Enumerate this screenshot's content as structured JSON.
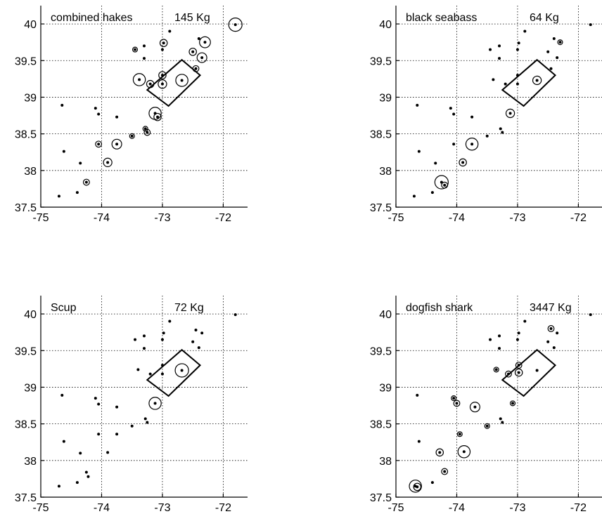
{
  "chart_data": [
    {
      "type": "scatter",
      "title": "combined hakes",
      "total_label": "145 Kg",
      "xlim": [
        -75,
        -71.6
      ],
      "ylim": [
        37.5,
        40.25
      ],
      "xticks": [
        "-75",
        "-74",
        "-73",
        "-72"
      ],
      "yticks": [
        "37.5",
        "38",
        "38.5",
        "39",
        "39.5",
        "40"
      ],
      "grid": true,
      "stations": [
        {
          "x": -74.65,
          "y": 38.89,
          "r": 0
        },
        {
          "x": -74.62,
          "y": 38.26,
          "r": 0
        },
        {
          "x": -74.7,
          "y": 37.65,
          "r": 0
        },
        {
          "x": -74.4,
          "y": 37.7,
          "r": 0
        },
        {
          "x": -74.35,
          "y": 38.1,
          "r": 0
        },
        {
          "x": -74.25,
          "y": 37.84,
          "r": 0.05
        },
        {
          "x": -74.1,
          "y": 38.85,
          "r": 0
        },
        {
          "x": -74.05,
          "y": 38.77,
          "r": 0
        },
        {
          "x": -74.05,
          "y": 38.36,
          "r": 0.05
        },
        {
          "x": -73.9,
          "y": 38.11,
          "r": 0.07
        },
        {
          "x": -73.75,
          "y": 38.73,
          "r": 0
        },
        {
          "x": -73.75,
          "y": 38.36,
          "r": 0.08
        },
        {
          "x": -73.5,
          "y": 38.47,
          "r": 0.04
        },
        {
          "x": -73.45,
          "y": 39.65,
          "r": 0.04
        },
        {
          "x": -73.38,
          "y": 39.24,
          "r": 0.1
        },
        {
          "x": -73.28,
          "y": 38.57,
          "r": 0.04
        },
        {
          "x": -73.25,
          "y": 38.52,
          "r": 0.05
        },
        {
          "x": -73.3,
          "y": 39.7,
          "r": 0
        },
        {
          "x": -73.3,
          "y": 39.53,
          "r": 0
        },
        {
          "x": -73.2,
          "y": 39.18,
          "r": 0.06
        },
        {
          "x": -73.12,
          "y": 38.78,
          "r": 0.1
        },
        {
          "x": -73.08,
          "y": 38.73,
          "r": 0.06
        },
        {
          "x": -73.0,
          "y": 39.3,
          "r": 0.06
        },
        {
          "x": -73.0,
          "y": 39.18,
          "r": 0.07
        },
        {
          "x": -73.0,
          "y": 39.65,
          "r": 0
        },
        {
          "x": -72.98,
          "y": 39.74,
          "r": 0.06
        },
        {
          "x": -72.88,
          "y": 39.9,
          "r": 0
        },
        {
          "x": -72.68,
          "y": 39.23,
          "r": 0.1
        },
        {
          "x": -72.5,
          "y": 39.62,
          "r": 0.06
        },
        {
          "x": -72.45,
          "y": 39.39,
          "r": 0.05
        },
        {
          "x": -72.4,
          "y": 39.8,
          "r": 0
        },
        {
          "x": -72.35,
          "y": 39.54,
          "r": 0.08
        },
        {
          "x": -72.3,
          "y": 39.75,
          "r": 0.09
        },
        {
          "x": -71.8,
          "y": 39.99,
          "r": 0.11
        }
      ]
    },
    {
      "type": "scatter",
      "title": "black seabass",
      "total_label": "64 Kg",
      "xlim": [
        -75,
        -71.6
      ],
      "ylim": [
        37.5,
        40.25
      ],
      "xticks": [
        "-75",
        "-74",
        "-73",
        "-72"
      ],
      "yticks": [
        "37.5",
        "38",
        "38.5",
        "39",
        "39.5",
        "40"
      ],
      "grid": true,
      "stations": [
        {
          "x": -74.65,
          "y": 38.89,
          "r": 0
        },
        {
          "x": -74.62,
          "y": 38.26,
          "r": 0
        },
        {
          "x": -74.7,
          "y": 37.65,
          "r": 0
        },
        {
          "x": -74.4,
          "y": 37.7,
          "r": 0
        },
        {
          "x": -74.35,
          "y": 38.1,
          "r": 0
        },
        {
          "x": -74.25,
          "y": 37.84,
          "r": 0.11
        },
        {
          "x": -74.2,
          "y": 37.8,
          "r": 0.05
        },
        {
          "x": -74.1,
          "y": 38.85,
          "r": 0
        },
        {
          "x": -74.05,
          "y": 38.77,
          "r": 0
        },
        {
          "x": -74.05,
          "y": 38.36,
          "r": 0
        },
        {
          "x": -73.9,
          "y": 38.11,
          "r": 0.06
        },
        {
          "x": -73.75,
          "y": 38.73,
          "r": 0
        },
        {
          "x": -73.75,
          "y": 38.36,
          "r": 0.1
        },
        {
          "x": -73.5,
          "y": 38.47,
          "r": 0
        },
        {
          "x": -73.45,
          "y": 39.65,
          "r": 0
        },
        {
          "x": -73.4,
          "y": 39.24,
          "r": 0
        },
        {
          "x": -73.28,
          "y": 38.57,
          "r": 0
        },
        {
          "x": -73.25,
          "y": 38.52,
          "r": 0
        },
        {
          "x": -73.3,
          "y": 39.7,
          "r": 0
        },
        {
          "x": -73.3,
          "y": 39.53,
          "r": 0
        },
        {
          "x": -73.2,
          "y": 39.18,
          "r": 0
        },
        {
          "x": -73.12,
          "y": 38.78,
          "r": 0.07
        },
        {
          "x": -73.0,
          "y": 39.3,
          "r": 0
        },
        {
          "x": -73.0,
          "y": 39.18,
          "r": 0
        },
        {
          "x": -73.0,
          "y": 39.65,
          "r": 0
        },
        {
          "x": -72.98,
          "y": 39.74,
          "r": 0
        },
        {
          "x": -72.88,
          "y": 39.9,
          "r": 0
        },
        {
          "x": -72.68,
          "y": 39.23,
          "r": 0.07
        },
        {
          "x": -72.5,
          "y": 39.62,
          "r": 0
        },
        {
          "x": -72.45,
          "y": 39.39,
          "r": 0
        },
        {
          "x": -72.4,
          "y": 39.8,
          "r": 0
        },
        {
          "x": -72.35,
          "y": 39.54,
          "r": 0
        },
        {
          "x": -72.3,
          "y": 39.75,
          "r": 0.04
        },
        {
          "x": -71.8,
          "y": 39.99,
          "r": 0
        }
      ]
    },
    {
      "type": "scatter",
      "title": "Scup",
      "total_label": "72 Kg",
      "xlim": [
        -75,
        -71.6
      ],
      "ylim": [
        37.5,
        40.25
      ],
      "xticks": [
        "-75",
        "-74",
        "-73",
        "-72"
      ],
      "yticks": [
        "37.5",
        "38",
        "38.5",
        "39",
        "39.5",
        "40"
      ],
      "grid": true,
      "stations": [
        {
          "x": -74.65,
          "y": 38.89,
          "r": 0
        },
        {
          "x": -74.62,
          "y": 38.26,
          "r": 0
        },
        {
          "x": -74.7,
          "y": 37.65,
          "r": 0
        },
        {
          "x": -74.4,
          "y": 37.7,
          "r": 0
        },
        {
          "x": -74.35,
          "y": 38.1,
          "r": 0
        },
        {
          "x": -74.25,
          "y": 37.84,
          "r": 0
        },
        {
          "x": -74.22,
          "y": 37.78,
          "r": 0
        },
        {
          "x": -74.1,
          "y": 38.85,
          "r": 0
        },
        {
          "x": -74.05,
          "y": 38.77,
          "r": 0
        },
        {
          "x": -74.05,
          "y": 38.36,
          "r": 0
        },
        {
          "x": -73.9,
          "y": 38.11,
          "r": 0
        },
        {
          "x": -73.75,
          "y": 38.73,
          "r": 0
        },
        {
          "x": -73.75,
          "y": 38.36,
          "r": 0
        },
        {
          "x": -73.5,
          "y": 38.47,
          "r": 0
        },
        {
          "x": -73.45,
          "y": 39.65,
          "r": 0
        },
        {
          "x": -73.4,
          "y": 39.24,
          "r": 0
        },
        {
          "x": -73.28,
          "y": 38.57,
          "r": 0
        },
        {
          "x": -73.25,
          "y": 38.52,
          "r": 0
        },
        {
          "x": -73.3,
          "y": 39.7,
          "r": 0
        },
        {
          "x": -73.3,
          "y": 39.53,
          "r": 0
        },
        {
          "x": -73.2,
          "y": 39.18,
          "r": 0
        },
        {
          "x": -73.12,
          "y": 38.78,
          "r": 0.1
        },
        {
          "x": -73.0,
          "y": 39.3,
          "r": 0
        },
        {
          "x": -73.0,
          "y": 39.18,
          "r": 0
        },
        {
          "x": -73.0,
          "y": 39.65,
          "r": 0
        },
        {
          "x": -72.98,
          "y": 39.74,
          "r": 0
        },
        {
          "x": -72.88,
          "y": 39.9,
          "r": 0
        },
        {
          "x": -72.68,
          "y": 39.23,
          "r": 0.11
        },
        {
          "x": -72.5,
          "y": 39.62,
          "r": 0
        },
        {
          "x": -72.45,
          "y": 39.78,
          "r": 0
        },
        {
          "x": -72.4,
          "y": 39.54,
          "r": 0
        },
        {
          "x": -72.35,
          "y": 39.74,
          "r": 0
        },
        {
          "x": -71.8,
          "y": 39.99,
          "r": 0
        }
      ]
    },
    {
      "type": "scatter",
      "title": "dogfish shark",
      "total_label": "3447 Kg",
      "xlim": [
        -75,
        -71.6
      ],
      "ylim": [
        37.5,
        40.25
      ],
      "xticks": [
        "-75",
        "-74",
        "-73",
        "-72"
      ],
      "yticks": [
        "37.5",
        "38",
        "38.5",
        "39",
        "39.5",
        "40"
      ],
      "grid": true,
      "stations": [
        {
          "x": -74.65,
          "y": 38.89,
          "r": 0
        },
        {
          "x": -74.62,
          "y": 38.26,
          "r": 0
        },
        {
          "x": -74.68,
          "y": 37.65,
          "r": 0.1
        },
        {
          "x": -74.65,
          "y": 37.64,
          "r": 0.06
        },
        {
          "x": -74.4,
          "y": 37.7,
          "r": 0
        },
        {
          "x": -74.28,
          "y": 38.11,
          "r": 0.06
        },
        {
          "x": -74.2,
          "y": 37.85,
          "r": 0.05
        },
        {
          "x": -74.05,
          "y": 38.85,
          "r": 0.04
        },
        {
          "x": -74.0,
          "y": 38.78,
          "r": 0.05
        },
        {
          "x": -73.95,
          "y": 38.36,
          "r": 0.04
        },
        {
          "x": -73.88,
          "y": 38.12,
          "r": 0.1
        },
        {
          "x": -73.7,
          "y": 38.73,
          "r": 0.08
        },
        {
          "x": -73.5,
          "y": 38.47,
          "r": 0.04
        },
        {
          "x": -73.45,
          "y": 39.65,
          "r": 0
        },
        {
          "x": -73.35,
          "y": 39.24,
          "r": 0.04
        },
        {
          "x": -73.28,
          "y": 38.57,
          "r": 0
        },
        {
          "x": -73.25,
          "y": 38.52,
          "r": 0
        },
        {
          "x": -73.3,
          "y": 39.7,
          "r": 0
        },
        {
          "x": -73.3,
          "y": 39.53,
          "r": 0
        },
        {
          "x": -73.15,
          "y": 39.18,
          "r": 0.05
        },
        {
          "x": -73.08,
          "y": 38.78,
          "r": 0.04
        },
        {
          "x": -72.98,
          "y": 39.3,
          "r": 0.05
        },
        {
          "x": -72.98,
          "y": 39.2,
          "r": 0.06
        },
        {
          "x": -73.0,
          "y": 39.65,
          "r": 0
        },
        {
          "x": -72.98,
          "y": 39.74,
          "r": 0
        },
        {
          "x": -72.88,
          "y": 39.9,
          "r": 0
        },
        {
          "x": -72.68,
          "y": 39.23,
          "r": 0
        },
        {
          "x": -72.5,
          "y": 39.62,
          "r": 0
        },
        {
          "x": -72.45,
          "y": 39.8,
          "r": 0.05
        },
        {
          "x": -72.4,
          "y": 39.54,
          "r": 0
        },
        {
          "x": -72.35,
          "y": 39.74,
          "r": 0
        },
        {
          "x": -71.8,
          "y": 39.99,
          "r": 0
        }
      ]
    }
  ],
  "study_area_box": [
    [
      -73.25,
      39.1
    ],
    [
      -72.68,
      39.51
    ],
    [
      -72.38,
      39.3
    ],
    [
      -72.9,
      38.88
    ]
  ]
}
